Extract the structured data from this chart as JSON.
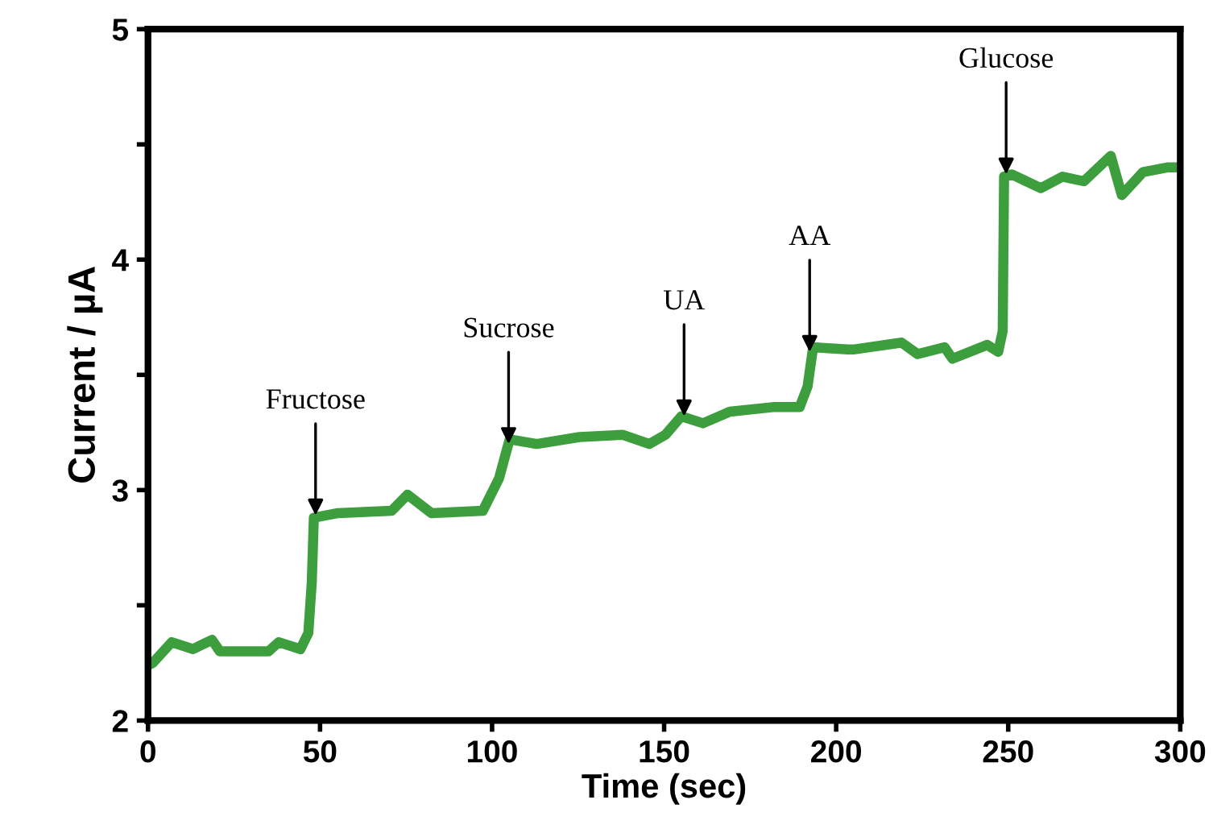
{
  "chart_data": {
    "type": "line",
    "xlabel": "Time (sec)",
    "ylabel": "Current / µA",
    "xlim": [
      0,
      300
    ],
    "ylim": [
      2,
      5
    ],
    "xticks": [
      0,
      50,
      100,
      150,
      200,
      250,
      300
    ],
    "yticks": [
      2,
      {
        "value": 2.5,
        "label": null
      },
      3,
      {
        "value": 3.5,
        "label": null
      },
      4,
      {
        "value": 4.5,
        "label": null
      },
      5
    ],
    "marker": "none",
    "line_style": "solid",
    "series": [
      {
        "color": "#3c9e3c",
        "x": [
          0,
          1.4,
          6.9,
          13.1,
          18.6,
          20.9,
          35,
          38,
          44.3,
          46.6,
          47.6,
          48.2,
          55.2,
          70.8,
          75.4,
          82.4,
          97.3,
          102,
          105.1,
          113,
          125.4,
          137.9,
          145.7,
          150.4,
          155,
          161.3,
          169.1,
          181.6,
          189.4,
          191.7,
          193.3,
          203.4,
          205,
          219,
          223.7,
          231.5,
          233.8,
          243.9,
          247.1,
          248.4,
          248.8,
          251,
          259.5,
          265.8,
          272,
          279.8,
          283,
          289.2,
          296.2,
          300
        ],
        "values": [
          2.24,
          2.25,
          2.34,
          2.31,
          2.35,
          2.3,
          2.3,
          2.34,
          2.31,
          2.38,
          2.6,
          2.88,
          2.9,
          2.91,
          2.98,
          2.9,
          2.91,
          3.05,
          3.22,
          3.2,
          3.23,
          3.24,
          3.2,
          3.24,
          3.32,
          3.29,
          3.34,
          3.36,
          3.36,
          3.45,
          3.62,
          3.61,
          3.61,
          3.64,
          3.59,
          3.62,
          3.57,
          3.63,
          3.6,
          3.69,
          4.36,
          4.37,
          4.31,
          4.36,
          4.34,
          4.45,
          4.28,
          4.38,
          4.4,
          4.4
        ]
      }
    ],
    "annotations": [
      {
        "text": "Fructose",
        "x": 48.7,
        "y": 2.89
      },
      {
        "text": "Sucrose",
        "x": 104.8,
        "y": 3.2
      },
      {
        "text": "UA",
        "x": 155.8,
        "y": 3.32
      },
      {
        "text": "AA",
        "x": 192.3,
        "y": 3.6
      },
      {
        "text": "Glucose",
        "x": 249.4,
        "y": 4.37
      }
    ]
  }
}
